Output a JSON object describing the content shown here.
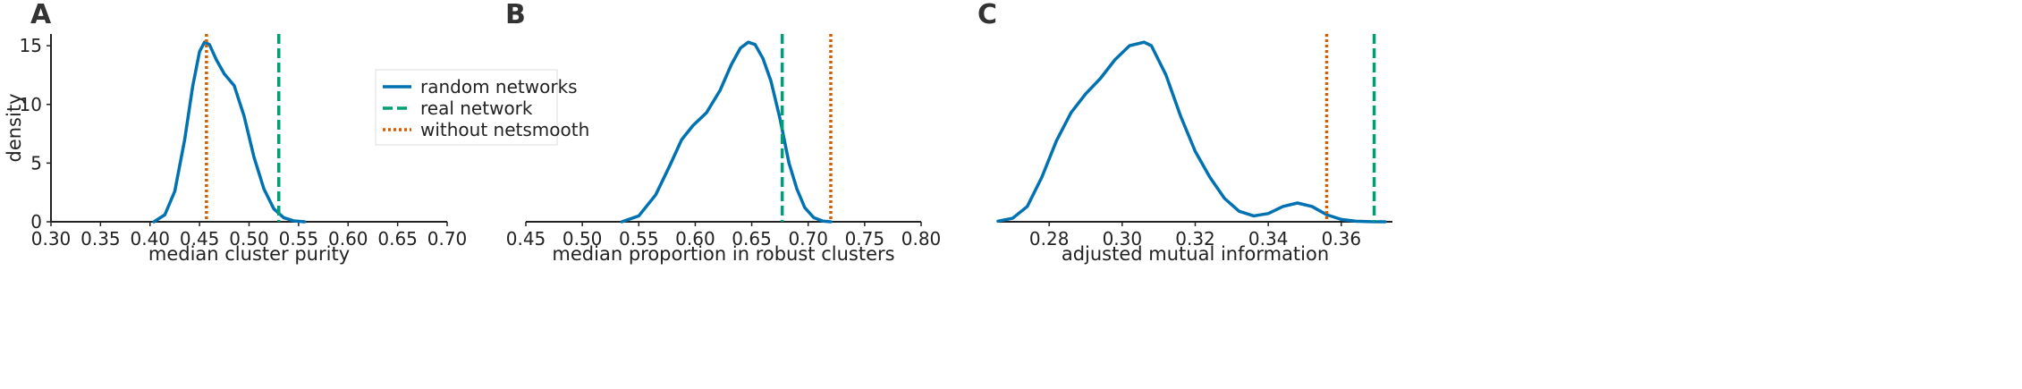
{
  "colors": {
    "random": "#0072b2",
    "real": "#009e73",
    "without": "#d55e00",
    "axis": "#222222"
  },
  "legend": {
    "entries": [
      {
        "label": "random networks",
        "style": "solid",
        "color": "#0072b2"
      },
      {
        "label": "real network",
        "style": "dashed",
        "color": "#009e73"
      },
      {
        "label": "without netsmooth",
        "style": "dotted",
        "color": "#d55e00"
      }
    ]
  },
  "chart_data": [
    {
      "type": "line",
      "panel_label": "A",
      "xlabel": "median cluster purity",
      "ylabel": "density",
      "xlim": [
        0.3,
        0.7
      ],
      "ylim": [
        0,
        16
      ],
      "xticks": [
        "0.30",
        "0.35",
        "0.40",
        "0.45",
        "0.50",
        "0.55",
        "0.60",
        "0.65",
        "0.70"
      ],
      "yticks": [
        "0",
        "5",
        "10",
        "15"
      ],
      "series": [
        {
          "name": "random networks",
          "style": "solid",
          "x": [
            0.404,
            0.415,
            0.425,
            0.435,
            0.443,
            0.45,
            0.455,
            0.46,
            0.467,
            0.475,
            0.485,
            0.495,
            0.505,
            0.515,
            0.525,
            0.535,
            0.545,
            0.556
          ],
          "y": [
            0,
            0.6,
            2.6,
            7.0,
            11.5,
            14.5,
            15.3,
            15.1,
            13.8,
            12.6,
            11.6,
            9.0,
            5.5,
            2.8,
            1.1,
            0.35,
            0.08,
            0
          ]
        }
      ],
      "reference_lines": [
        {
          "name": "real network",
          "style": "dashed",
          "x": 0.53
        },
        {
          "name": "without netsmooth",
          "style": "dotted",
          "x": 0.457
        }
      ]
    },
    {
      "type": "line",
      "panel_label": "B",
      "xlabel": "median proportion in robust clusters",
      "ylabel": "",
      "xlim": [
        0.45,
        0.8
      ],
      "ylim": [
        0,
        16
      ],
      "xticks": [
        "0.45",
        "0.50",
        "0.55",
        "0.60",
        "0.65",
        "0.70",
        "0.75",
        "0.80"
      ],
      "yticks": [],
      "series": [
        {
          "name": "random networks",
          "style": "solid",
          "x": [
            0.535,
            0.55,
            0.565,
            0.578,
            0.588,
            0.598,
            0.61,
            0.622,
            0.632,
            0.64,
            0.647,
            0.653,
            0.66,
            0.667,
            0.675,
            0.683,
            0.69,
            0.697,
            0.705,
            0.713,
            0.72
          ],
          "y": [
            0,
            0.5,
            2.3,
            4.9,
            7.0,
            8.2,
            9.3,
            11.2,
            13.4,
            14.8,
            15.3,
            15.1,
            13.9,
            12.0,
            8.8,
            5.0,
            2.8,
            1.2,
            0.35,
            0.06,
            0
          ]
        }
      ],
      "reference_lines": [
        {
          "name": "real network",
          "style": "dashed",
          "x": 0.677
        },
        {
          "name": "without netsmooth",
          "style": "dotted",
          "x": 0.72
        }
      ]
    },
    {
      "type": "line",
      "panel_label": "C",
      "xlabel": "adjusted mutual information",
      "ylabel": "",
      "xlim": [
        0.266,
        0.374
      ],
      "ylim": [
        0,
        16
      ],
      "xticks": [
        "0.28",
        "0.30",
        "0.32",
        "0.34",
        "0.36"
      ],
      "yticks": [],
      "series": [
        {
          "name": "random networks",
          "style": "solid",
          "x": [
            0.266,
            0.27,
            0.274,
            0.278,
            0.282,
            0.286,
            0.29,
            0.294,
            0.298,
            0.302,
            0.306,
            0.308,
            0.312,
            0.316,
            0.32,
            0.324,
            0.328,
            0.332,
            0.336,
            0.34,
            0.344,
            0.348,
            0.352,
            0.356,
            0.36,
            0.364,
            0.368,
            0.372
          ],
          "y": [
            0.05,
            0.3,
            1.3,
            3.8,
            6.9,
            9.3,
            10.9,
            12.2,
            13.8,
            15.0,
            15.3,
            15.0,
            12.5,
            9.0,
            6.0,
            3.8,
            2.0,
            0.9,
            0.5,
            0.7,
            1.3,
            1.6,
            1.3,
            0.6,
            0.2,
            0.05,
            0.01,
            0
          ]
        }
      ],
      "reference_lines": [
        {
          "name": "real network",
          "style": "dashed",
          "x": 0.369
        },
        {
          "name": "without netsmooth",
          "style": "dotted",
          "x": 0.356
        }
      ]
    }
  ]
}
